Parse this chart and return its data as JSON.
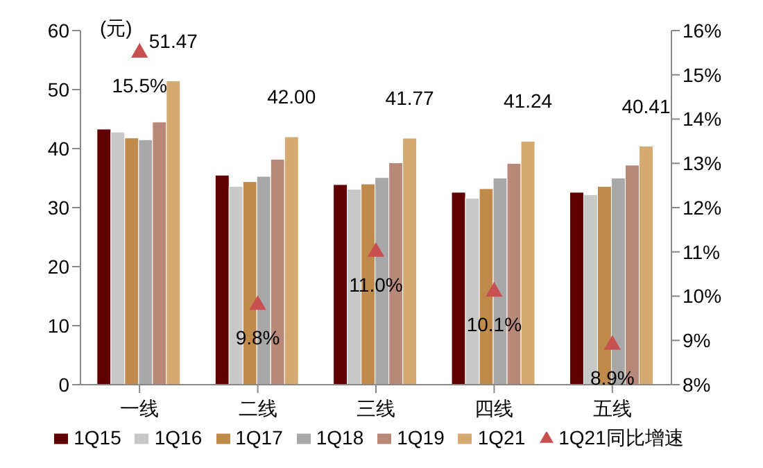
{
  "chart_data": {
    "type": "bar",
    "categories": [
      "一线",
      "二线",
      "三线",
      "四线",
      "五线"
    ],
    "series": [
      {
        "name": "1Q15",
        "color": "#600000",
        "values": [
          43.3,
          35.5,
          33.9,
          32.6,
          32.6
        ]
      },
      {
        "name": "1Q16",
        "color": "#c8c8c8",
        "values": [
          42.8,
          33.6,
          33.1,
          31.6,
          32.2
        ]
      },
      {
        "name": "1Q17",
        "color": "#c08a4a",
        "values": [
          41.8,
          34.4,
          34.0,
          33.2,
          33.6
        ]
      },
      {
        "name": "1Q18",
        "color": "#a8a8a8",
        "values": [
          41.5,
          35.3,
          35.1,
          35.0,
          35.0
        ]
      },
      {
        "name": "1Q19",
        "color": "#b88878",
        "values": [
          44.5,
          38.2,
          37.6,
          37.5,
          37.2
        ]
      },
      {
        "name": "1Q21",
        "color": "#d4aa70",
        "values": [
          51.47,
          42.0,
          41.77,
          41.24,
          40.41
        ],
        "value_labels": [
          "51.47",
          "42.00",
          "41.77",
          "41.24",
          "40.41"
        ]
      },
      {
        "name": "1Q21同比增速",
        "type": "scatter",
        "axis": "y2",
        "marker": "triangle",
        "color": "#c85050",
        "values": [
          15.5,
          9.8,
          11.0,
          10.1,
          8.9
        ],
        "value_labels": [
          "15.5%",
          "9.8%",
          "11.0%",
          "10.1%",
          "8.9%"
        ]
      }
    ],
    "ylim": [
      0,
      60
    ],
    "yticks": [
      0,
      10,
      20,
      30,
      40,
      50,
      60
    ],
    "y2lim": [
      8,
      16
    ],
    "y2ticks": [
      {
        "value": 8,
        "label": "8%"
      },
      {
        "value": 9,
        "label": "9%"
      },
      {
        "value": 10,
        "label": "10%"
      },
      {
        "value": 11,
        "label": "11%"
      },
      {
        "value": 12,
        "label": "12%"
      },
      {
        "value": 13,
        "label": "13%"
      },
      {
        "value": 14,
        "label": "14%"
      },
      {
        "value": 15,
        "label": "15%"
      },
      {
        "value": 16,
        "label": "16%"
      }
    ],
    "annotations": [
      "(元)"
    ],
    "grid": false,
    "legend": "bottom"
  }
}
